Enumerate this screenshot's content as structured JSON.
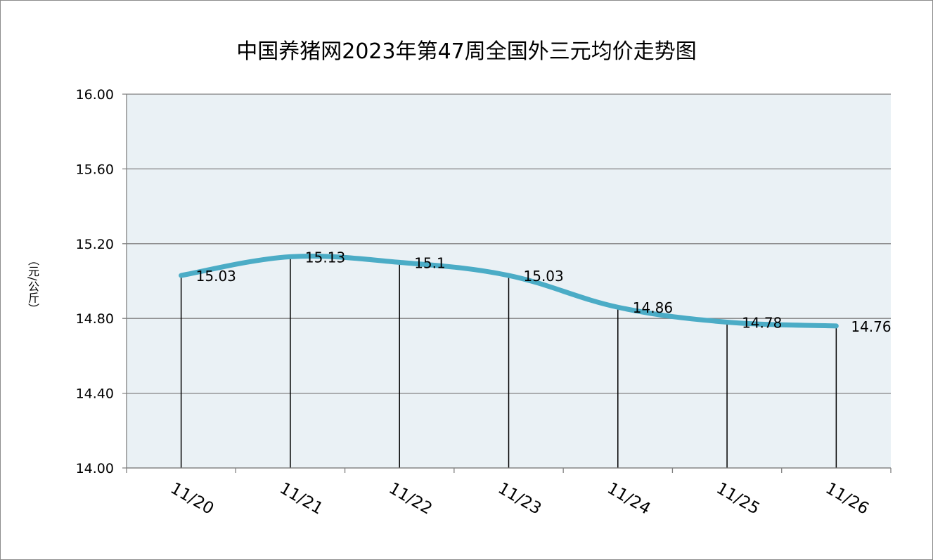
{
  "chart_data": {
    "type": "line",
    "title": "中国养猪网2023年第47周全国外三元均价走势图",
    "ylabel": "（元/公斤）",
    "xlabel": "",
    "categories": [
      "11/20",
      "11/21",
      "11/22",
      "11/23",
      "11/24",
      "11/25",
      "11/26"
    ],
    "values": [
      15.03,
      15.13,
      15.1,
      15.03,
      14.86,
      14.78,
      14.76
    ],
    "data_labels": [
      "15.03",
      "15.13",
      "15.1",
      "15.03",
      "14.86",
      "14.78",
      "14.76"
    ],
    "ylim": [
      14.0,
      16.0
    ],
    "yticks": [
      14.0,
      14.4,
      14.8,
      15.2,
      15.6,
      16.0
    ],
    "ytick_labels": [
      "14.00",
      "14.40",
      "14.80",
      "15.20",
      "15.60",
      "16.00"
    ],
    "grid": true,
    "drop_lines": true,
    "legend": "none",
    "colors": {
      "line": "#4bacc6",
      "plot_background": "#eaf1f5",
      "gridline": "#808080",
      "drop_line": "#000000"
    }
  }
}
